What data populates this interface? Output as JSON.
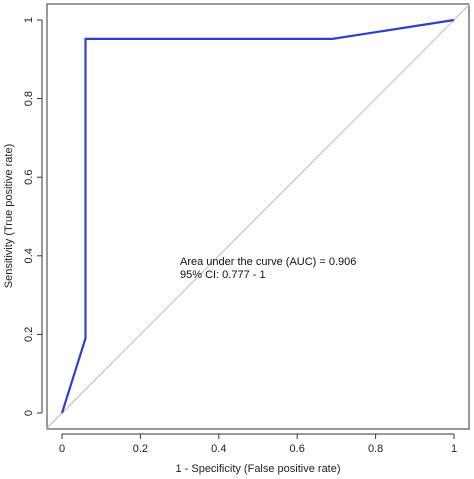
{
  "chart_data": {
    "type": "line",
    "xlabel": "1 - Specificity (False positive rate)",
    "ylabel": "Sensitivity (True positive rate)",
    "xlim": [
      0,
      1
    ],
    "ylim": [
      0,
      1
    ],
    "x_ticks": [
      "0",
      "0.2",
      "0.4",
      "0.6",
      "0.8",
      "1"
    ],
    "y_ticks": [
      "0",
      "0.2",
      "0.4",
      "0.6",
      "0.8",
      "1"
    ],
    "grid": false,
    "series": [
      {
        "color": "#2f3fd0",
        "x": [
          0,
          0.06,
          0.06,
          0.69,
          1
        ],
        "y": [
          0,
          0.19,
          0.952,
          0.952,
          1
        ]
      }
    ],
    "reference_line": {
      "x": [
        -0.04,
        1.04
      ],
      "y": [
        -0.04,
        1.04
      ],
      "color": "#bbbbbb"
    },
    "annotations": [
      "Area under the curve (AUC) = 0.906",
      "95% CI: 0.777 - 1"
    ]
  }
}
